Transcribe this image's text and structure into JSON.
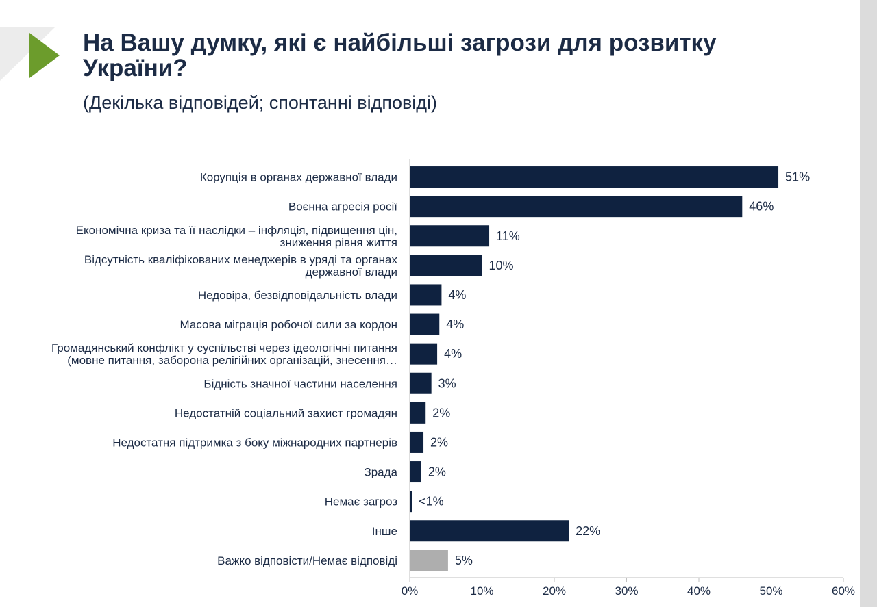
{
  "header": {
    "title_line1": "На Вашу думку, які є найбільші загрози для розвитку",
    "title_line2": "України?",
    "subtitle": "(Декілька відповідей; спонтанні відповіді)"
  },
  "colors": {
    "bar": "#0f2240",
    "bar_muted": "#aeaeae",
    "accent": "#6c9c2c"
  },
  "chart_data": {
    "type": "bar",
    "orientation": "horizontal",
    "categories": [
      [
        "Корупція в органах державної влади"
      ],
      [
        "Воєнна агресія росії"
      ],
      [
        "Економічна криза та її наслідки – інфляція, підвищення цін,",
        "зниження рівня життя"
      ],
      [
        "Відсутність кваліфікованих менеджерів в уряді та органах",
        "державної влади"
      ],
      [
        "Недовіра, безвідповідальність влади"
      ],
      [
        "Масова міграція робочої сили за кордон"
      ],
      [
        "Громадянський конфлікт у суспільстві через ідеологічні питання",
        "(мовне питання, заборона релігійних організацій, знесення…"
      ],
      [
        "Бідність значної частини населення"
      ],
      [
        "Недостатній соціальний захист громадян"
      ],
      [
        "Недостатня підтримка з боку міжнародних партнерів"
      ],
      [
        "Зрада"
      ],
      [
        "Немає загроз"
      ],
      [
        "Інше"
      ],
      [
        "Важко відповісти/Немає відповіді"
      ]
    ],
    "values": [
      51,
      46,
      11,
      10,
      4.4,
      4.1,
      3.8,
      3.0,
      2.2,
      1.9,
      1.6,
      0.3,
      22,
      5.3
    ],
    "value_labels": [
      "51%",
      "46%",
      "11%",
      "10%",
      "4%",
      "4%",
      "4%",
      "3%",
      "2%",
      "2%",
      "2%",
      "<1%",
      "22%",
      "5%"
    ],
    "muted": [
      false,
      false,
      false,
      false,
      false,
      false,
      false,
      false,
      false,
      false,
      false,
      false,
      false,
      true
    ],
    "xlim": [
      0,
      60
    ],
    "ticks": [
      0,
      10,
      20,
      30,
      40,
      50,
      60
    ],
    "tick_labels": [
      "0%",
      "10%",
      "20%",
      "30%",
      "40%",
      "50%",
      "60%"
    ],
    "grid": false,
    "legend": "none"
  }
}
